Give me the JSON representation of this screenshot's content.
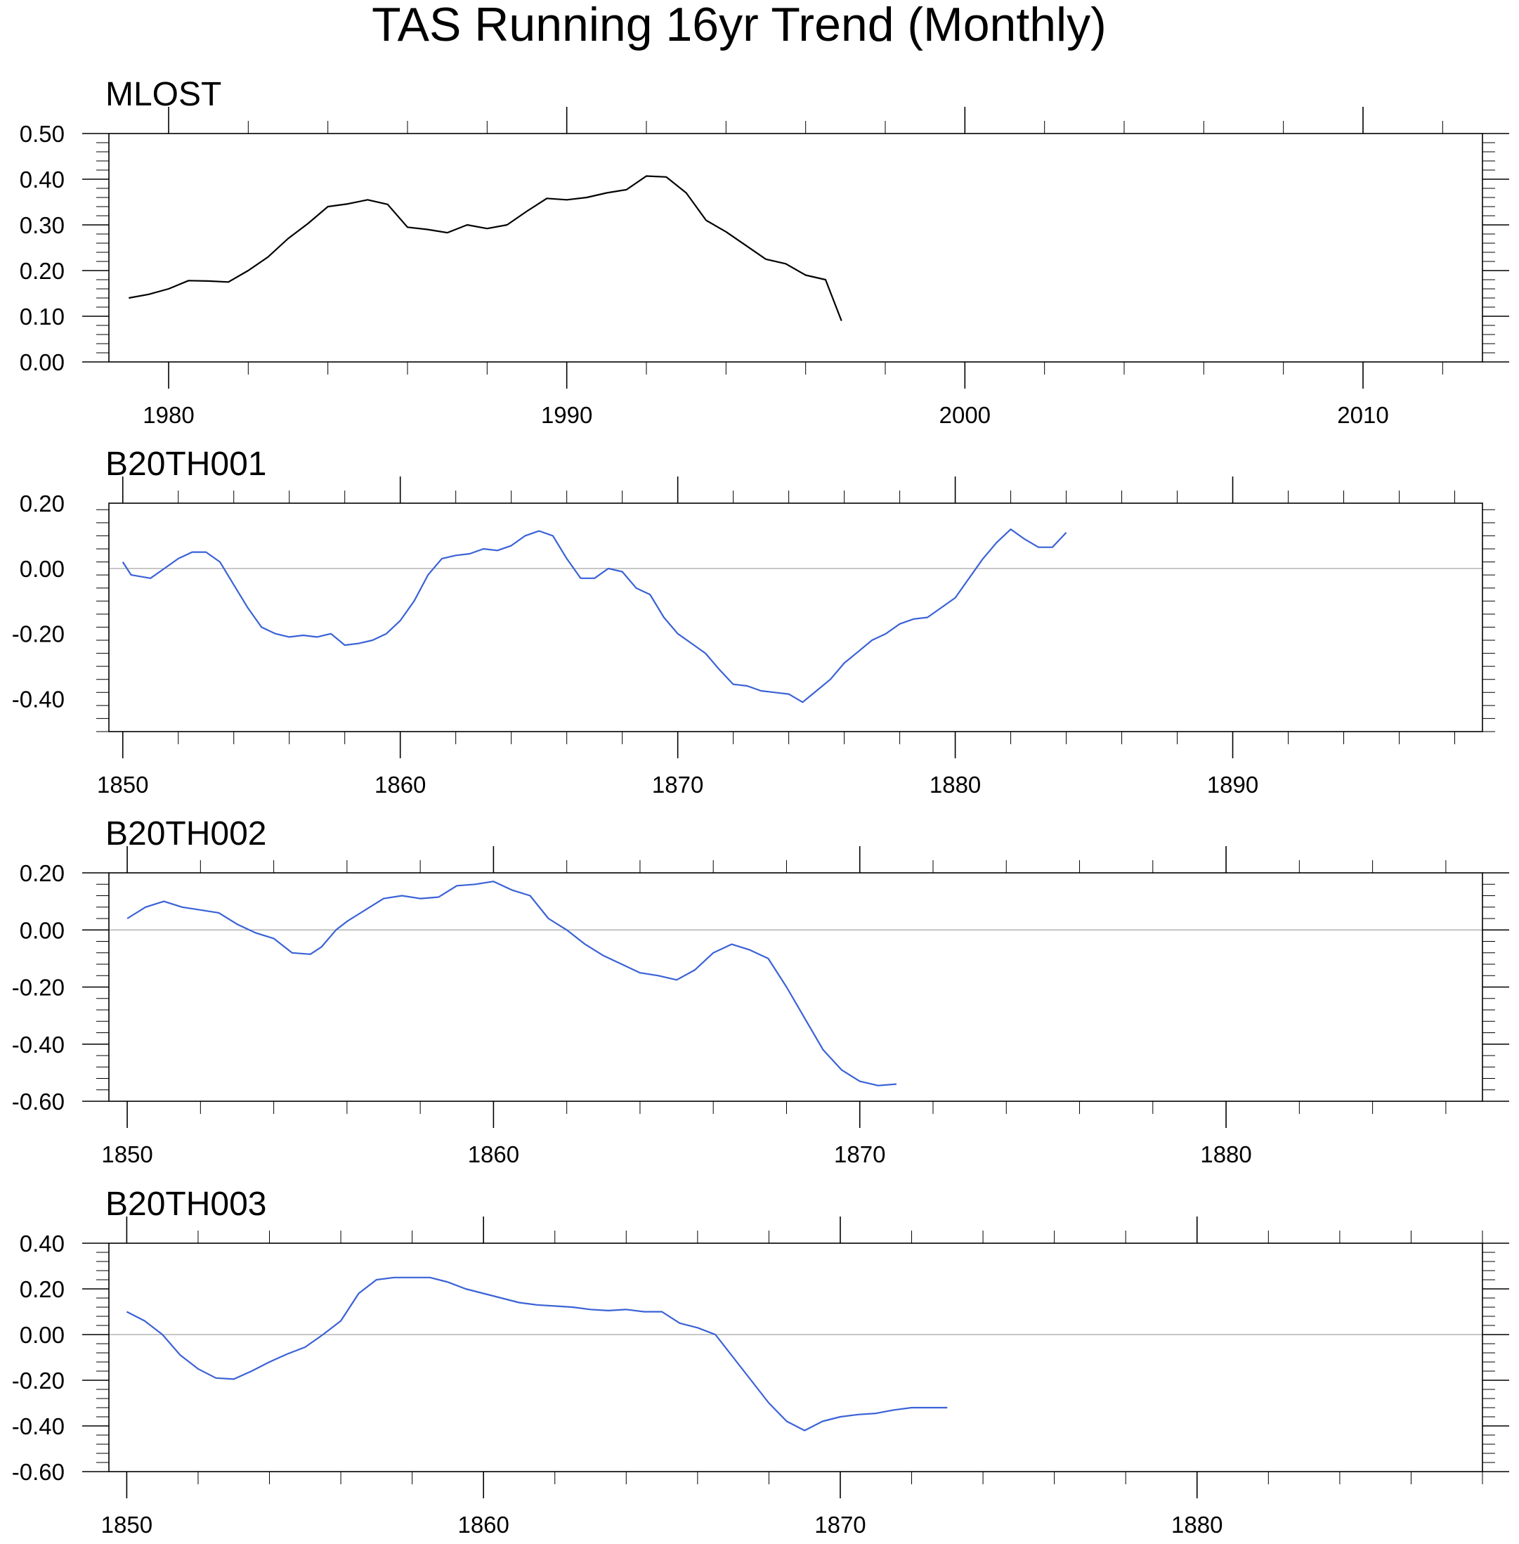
{
  "title": "TAS Running 16yr Trend (Monthly)",
  "colors": {
    "obs": "#000000",
    "model": "#3a62d6",
    "zero_line": "#b4b4b4",
    "axis": "#000000"
  },
  "chart_data": [
    {
      "type": "line",
      "name": "MLOST",
      "title": "MLOST",
      "xlim": [
        1978.5,
        2013
      ],
      "ylim": [
        0.0,
        0.5
      ],
      "xticks": [
        1980,
        1990,
        2000,
        2010
      ],
      "xtick_labels": [
        "1980",
        "1990",
        "2000",
        "2010"
      ],
      "yticks": [
        0.0,
        0.1,
        0.2,
        0.3,
        0.4,
        0.5
      ],
      "ytick_labels": [
        "0.00",
        "0.10",
        "0.20",
        "0.30",
        "0.40",
        "0.50"
      ],
      "zero_line": false,
      "color": "#000000",
      "series": {
        "x": [
          1979,
          1979.5,
          1980,
          1980.5,
          1981,
          1981.5,
          1982,
          1982.5,
          1983,
          1983.5,
          1984,
          1984.5,
          1985,
          1985.5,
          1986,
          1986.5,
          1987,
          1987.5,
          1988,
          1988.5,
          1989,
          1989.5,
          1990,
          1990.5,
          1991,
          1991.5,
          1992,
          1992.5,
          1993,
          1993.5,
          1994,
          1994.5,
          1995,
          1995.5,
          1996,
          1996.5,
          1996.9
        ],
        "y": [
          0.14,
          0.148,
          0.16,
          0.178,
          0.177,
          0.175,
          0.2,
          0.23,
          0.27,
          0.303,
          0.34,
          0.346,
          0.355,
          0.345,
          0.295,
          0.29,
          0.283,
          0.3,
          0.292,
          0.3,
          0.33,
          0.358,
          0.355,
          0.36,
          0.37,
          0.377,
          0.407,
          0.405,
          0.37,
          0.31,
          0.285,
          0.255,
          0.225,
          0.215,
          0.19,
          0.18,
          0.09
        ]
      }
    },
    {
      "type": "line",
      "name": "B20TH001",
      "title": "B20TH001",
      "xlim": [
        1849.5,
        1899
      ],
      "ylim": [
        -0.5,
        0.2
      ],
      "xticks": [
        1850,
        1860,
        1870,
        1880,
        1890
      ],
      "xtick_labels": [
        "1850",
        "1860",
        "1870",
        "1880",
        "1890"
      ],
      "yticks": [
        -0.4,
        -0.2,
        0.0,
        0.2
      ],
      "ytick_labels": [
        "-0.40",
        "-0.20",
        "0.00",
        "0.20"
      ],
      "zero_line": true,
      "color": "#3a62d6",
      "series": {
        "x": [
          1850,
          1850.3,
          1851,
          1851.5,
          1852,
          1852.5,
          1853,
          1853.5,
          1854,
          1854.5,
          1855,
          1855.5,
          1856,
          1856.5,
          1857,
          1857.5,
          1858,
          1858.5,
          1859,
          1859.5,
          1860,
          1860.5,
          1861,
          1861.5,
          1862,
          1862.5,
          1863,
          1863.5,
          1864,
          1864.5,
          1865,
          1865.5,
          1866,
          1866.5,
          1867,
          1867.5,
          1868,
          1868.5,
          1869,
          1869.5,
          1870,
          1870.5,
          1871,
          1871.5,
          1872,
          1872.5,
          1873,
          1873.5,
          1874,
          1874.5,
          1875,
          1875.5,
          1876,
          1876.5,
          1877,
          1877.5,
          1878,
          1878.5,
          1879,
          1879.5,
          1880,
          1880.5,
          1881,
          1881.5,
          1882,
          1882.5,
          1883,
          1883.5,
          1884
        ],
        "y": [
          0.02,
          -0.02,
          -0.03,
          0.0,
          0.03,
          0.05,
          0.05,
          0.02,
          -0.05,
          -0.12,
          -0.18,
          -0.2,
          -0.21,
          -0.205,
          -0.21,
          -0.2,
          -0.235,
          -0.23,
          -0.22,
          -0.2,
          -0.16,
          -0.1,
          -0.02,
          0.03,
          0.04,
          0.045,
          0.06,
          0.055,
          0.07,
          0.1,
          0.115,
          0.1,
          0.03,
          -0.03,
          -0.03,
          0.0,
          -0.01,
          -0.06,
          -0.08,
          -0.15,
          -0.2,
          -0.23,
          -0.26,
          -0.31,
          -0.355,
          -0.36,
          -0.375,
          -0.38,
          -0.385,
          -0.41,
          -0.375,
          -0.34,
          -0.29,
          -0.255,
          -0.22,
          -0.2,
          -0.17,
          -0.155,
          -0.15,
          -0.12,
          -0.09,
          -0.03,
          0.03,
          0.08,
          0.12,
          0.09,
          0.065,
          0.065,
          0.11
        ]
      }
    },
    {
      "type": "line",
      "name": "B20TH002",
      "title": "B20TH002",
      "xlim": [
        1849.5,
        1887
      ],
      "ylim": [
        -0.6,
        0.2
      ],
      "xticks": [
        1850,
        1860,
        1870,
        1880
      ],
      "xtick_labels": [
        "1850",
        "1860",
        "1870",
        "1880"
      ],
      "yticks": [
        -0.6,
        -0.4,
        -0.2,
        0.0,
        0.2
      ],
      "ytick_labels": [
        "-0.60",
        "-0.40",
        "-0.20",
        "0.00",
        "0.20"
      ],
      "zero_line": true,
      "color": "#3a62d6",
      "series": {
        "x": [
          1850,
          1850.5,
          1851,
          1851.5,
          1852,
          1852.5,
          1853,
          1853.5,
          1854,
          1854.5,
          1855,
          1855.3,
          1855.7,
          1856,
          1856.5,
          1857,
          1857.5,
          1858,
          1858.5,
          1859,
          1859.5,
          1860,
          1860.5,
          1861,
          1861.5,
          1862,
          1862.5,
          1863,
          1863.5,
          1864,
          1864.5,
          1865,
          1865.5,
          1866,
          1866.5,
          1867,
          1867.5,
          1868,
          1868.5,
          1869,
          1869.5,
          1870,
          1870.5,
          1871
        ],
        "y": [
          0.04,
          0.08,
          0.1,
          0.08,
          0.07,
          0.06,
          0.02,
          -0.01,
          -0.03,
          -0.08,
          -0.085,
          -0.06,
          0.0,
          0.03,
          0.07,
          0.11,
          0.12,
          0.11,
          0.115,
          0.155,
          0.16,
          0.17,
          0.14,
          0.12,
          0.04,
          0.0,
          -0.05,
          -0.09,
          -0.12,
          -0.15,
          -0.16,
          -0.175,
          -0.14,
          -0.08,
          -0.05,
          -0.07,
          -0.1,
          -0.2,
          -0.31,
          -0.42,
          -0.49,
          -0.53,
          -0.545,
          -0.54
        ]
      }
    },
    {
      "type": "line",
      "name": "B20TH003",
      "title": "B20TH003",
      "xlim": [
        1849.5,
        1888
      ],
      "ylim": [
        -0.6,
        0.4
      ],
      "xticks": [
        1850,
        1860,
        1870,
        1880
      ],
      "xtick_labels": [
        "1850",
        "1860",
        "1870",
        "1880"
      ],
      "yticks": [
        -0.6,
        -0.4,
        -0.2,
        0.0,
        0.2,
        0.4
      ],
      "ytick_labels": [
        "-0.60",
        "-0.40",
        "-0.20",
        "0.00",
        "0.20",
        "0.40"
      ],
      "zero_line": true,
      "color": "#3a62d6",
      "series": {
        "x": [
          1850,
          1850.5,
          1851,
          1851.5,
          1852,
          1852.5,
          1853,
          1853.5,
          1854,
          1854.5,
          1855,
          1855.5,
          1856,
          1856.5,
          1857,
          1857.5,
          1858,
          1858.5,
          1859,
          1859.5,
          1860,
          1860.5,
          1861,
          1861.5,
          1862,
          1862.5,
          1863,
          1863.5,
          1864,
          1864.5,
          1865,
          1865.5,
          1866,
          1866.5,
          1867,
          1867.5,
          1868,
          1868.5,
          1869,
          1869.5,
          1870,
          1870.5,
          1871,
          1871.5,
          1872,
          1872.5,
          1873
        ],
        "y": [
          0.1,
          0.06,
          0.0,
          -0.09,
          -0.15,
          -0.19,
          -0.195,
          -0.16,
          -0.12,
          -0.085,
          -0.055,
          0.0,
          0.06,
          0.18,
          0.24,
          0.25,
          0.25,
          0.25,
          0.23,
          0.2,
          0.18,
          0.16,
          0.14,
          0.13,
          0.125,
          0.12,
          0.11,
          0.105,
          0.11,
          0.1,
          0.1,
          0.05,
          0.03,
          0.0,
          -0.1,
          -0.2,
          -0.3,
          -0.38,
          -0.42,
          -0.38,
          -0.36,
          -0.35,
          -0.345,
          -0.33,
          -0.32,
          -0.32,
          -0.32
        ]
      }
    }
  ]
}
